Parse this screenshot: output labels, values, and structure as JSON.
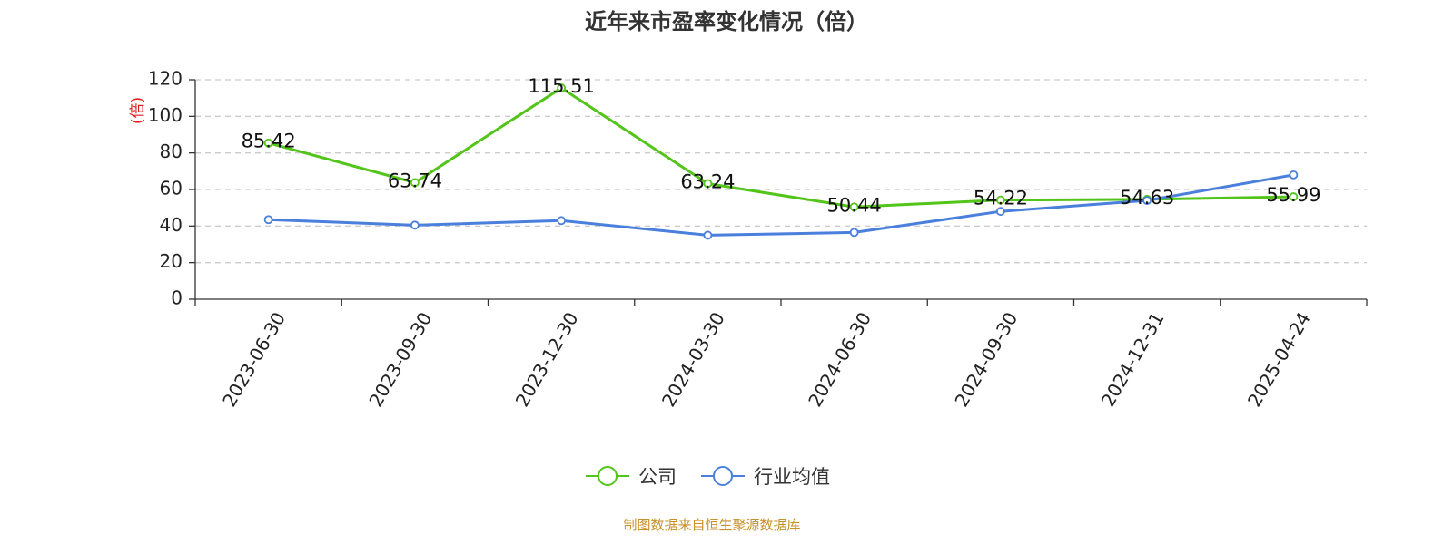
{
  "chart_data": {
    "type": "line",
    "title": "近年来市盈率变化情况（倍）",
    "ylabel": "(倍)",
    "xlabel": "",
    "categories": [
      "2023-06-30",
      "2023-09-30",
      "2023-12-30",
      "2024-03-30",
      "2024-06-30",
      "2024-09-30",
      "2024-12-31",
      "2025-04-24"
    ],
    "ylim": [
      0,
      120
    ],
    "yticks": [
      0,
      20,
      40,
      60,
      80,
      100,
      120
    ],
    "yticks_labels": [
      "0",
      "20",
      "40",
      "60",
      "80",
      "100",
      "120"
    ],
    "grid": true,
    "legend_position": "bottom",
    "series": [
      {
        "name": "公司",
        "color": "#52c41a",
        "values": [
          85.42,
          63.74,
          115.51,
          63.24,
          50.44,
          54.22,
          54.63,
          55.99
        ],
        "labels": [
          "85.42",
          "63.74",
          "115.51",
          "63.24",
          "50.44",
          "54.22",
          "54.63",
          "55.99"
        ]
      },
      {
        "name": "行业均值",
        "color": "#4a7fdc",
        "values": [
          43.5,
          40.5,
          43.0,
          35.0,
          36.5,
          48.0,
          54.0,
          68.0
        ]
      }
    ],
    "ylabel_color": "#e02020",
    "source": "制图数据来自恒生聚源数据库",
    "source_color": "#c8902a"
  }
}
